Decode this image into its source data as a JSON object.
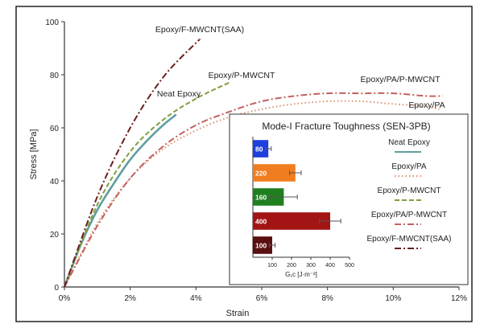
{
  "chart_data": [
    {
      "type": "line",
      "xlabel": "Strain",
      "ylabel": "Stress [MPa]",
      "xlim": [
        0,
        12
      ],
      "ylim": [
        0,
        100
      ],
      "x_tick_labels": [
        "0%",
        "2%",
        "4%",
        "6%",
        "8%",
        "10%",
        "12%"
      ],
      "y_tick_labels": [
        "0",
        "20",
        "40",
        "60",
        "80",
        "100"
      ],
      "grid": false,
      "legend_position": "none (curves labeled directly)",
      "series": [
        {
          "name": "Neat Epoxy",
          "color": "#5f9ea0",
          "dash": "solid",
          "x": [
            0,
            0.5,
            1,
            1.5,
            2,
            2.5,
            3,
            3.4
          ],
          "y": [
            0,
            16,
            29,
            39,
            48,
            55,
            61,
            65
          ]
        },
        {
          "name": "Epoxy/PA",
          "color": "#d7926f",
          "dash": "dotted",
          "x": [
            0,
            1,
            2,
            3,
            4,
            5,
            6,
            7,
            8,
            9,
            10,
            11,
            11.4
          ],
          "y": [
            0,
            24,
            41,
            52,
            59,
            64,
            67,
            69,
            70,
            70,
            69,
            68,
            67
          ]
        },
        {
          "name": "Epoxy/P-MWCNT",
          "color": "#7f9f3f",
          "dash": "dashed",
          "x": [
            0,
            1,
            2,
            3,
            4,
            5
          ],
          "y": [
            0,
            31,
            51,
            63,
            71,
            77
          ]
        },
        {
          "name": "Epoxy/PA/P-MWCNT",
          "color": "#c26060",
          "dash": "dashdot",
          "x": [
            0,
            1,
            2,
            3,
            4,
            5,
            6,
            7,
            8,
            9,
            10,
            11,
            11.5
          ],
          "y": [
            0,
            23,
            41,
            53,
            61,
            66,
            70,
            72,
            73,
            73,
            73,
            72,
            72
          ]
        },
        {
          "name": "Epoxy/F-MWCNT(SAA)",
          "color": "#6b1f1f",
          "dash": "dashdot",
          "x": [
            0,
            1,
            2,
            3,
            4,
            4.1
          ],
          "y": [
            0,
            34,
            60,
            79,
            92,
            93
          ]
        }
      ],
      "annotations": [
        {
          "text": "Epoxy/F-MWCNT(SAA)",
          "series": "Epoxy/F-MWCNT(SAA)"
        },
        {
          "text": "Epoxy/P-MWCNT",
          "series": "Epoxy/P-MWCNT"
        },
        {
          "text": "Neat Epoxy",
          "series": "Neat Epoxy"
        },
        {
          "text": "Epoxy/PA/P-MWCNT",
          "series": "Epoxy/PA/P-MWCNT"
        },
        {
          "text": "Epoxy/PA",
          "series": "Epoxy/PA"
        }
      ]
    },
    {
      "type": "bar",
      "orientation": "horizontal",
      "title": "Mode-I Fracture Toughness (SEN-3PB)",
      "xlabel": "G₁c [J·m⁻²]",
      "xlim": [
        0,
        500
      ],
      "x_tick_labels": [
        "100",
        "200",
        "300",
        "400",
        "500"
      ],
      "categories": [
        "Neat Epoxy",
        "Epoxy/PA",
        "Epoxy/P-MWCNT",
        "Epoxy/PA/P-MWCNT",
        "Epoxy/F-MWCNT(SAA)"
      ],
      "values": [
        80,
        220,
        160,
        400,
        100
      ],
      "value_labels": [
        "80",
        "220",
        "160",
        "400",
        "100"
      ],
      "errors": [
        15,
        30,
        70,
        55,
        15
      ],
      "colors": [
        "#1f3fdd",
        "#f07d1f",
        "#1f7f1f",
        "#a31414",
        "#5a1010"
      ],
      "legend_position": "right"
    }
  ]
}
